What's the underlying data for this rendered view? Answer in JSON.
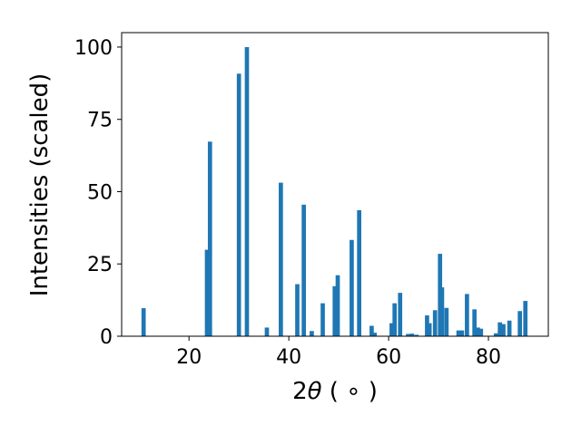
{
  "chart_data": {
    "type": "bar",
    "title": "",
    "xlabel_main": "2",
    "xlabel_theta": "θ",
    "xlabel_unit": " ( ∘ )",
    "ylabel": "Intensities (scaled)",
    "xlim": [
      6.5,
      92
    ],
    "ylim": [
      0,
      105
    ],
    "xticks": [
      20,
      40,
      60,
      80
    ],
    "yticks": [
      0,
      25,
      50,
      75,
      100
    ],
    "bar_color": "#1f77b4",
    "bar_width": 0.85,
    "grid": false,
    "legend": "none",
    "x": [
      10.9,
      23.6,
      24.2,
      30.0,
      31.6,
      35.6,
      38.4,
      41.7,
      43.0,
      44.6,
      46.8,
      49.2,
      49.8,
      52.6,
      54.1,
      56.6,
      57.2,
      60.6,
      61.2,
      62.3,
      63.9,
      64.7,
      65.6,
      67.7,
      68.2,
      69.3,
      70.3,
      70.7,
      71.6,
      74.0,
      74.7,
      75.7,
      77.2,
      77.9,
      78.5,
      81.5,
      82.3,
      83.0,
      84.2,
      86.3,
      87.4
    ],
    "values": [
      9.7,
      29.9,
      67.3,
      90.8,
      100.0,
      3.0,
      53.1,
      18.0,
      45.5,
      1.8,
      11.4,
      17.3,
      21.1,
      33.3,
      43.6,
      3.6,
      1.2,
      4.5,
      11.4,
      15.0,
      0.8,
      0.9,
      0.5,
      7.2,
      4.5,
      9.0,
      28.5,
      16.9,
      9.8,
      2.0,
      2.0,
      14.6,
      9.3,
      3.0,
      2.6,
      1.0,
      4.8,
      4.2,
      5.4,
      8.7,
      12.2
    ]
  }
}
